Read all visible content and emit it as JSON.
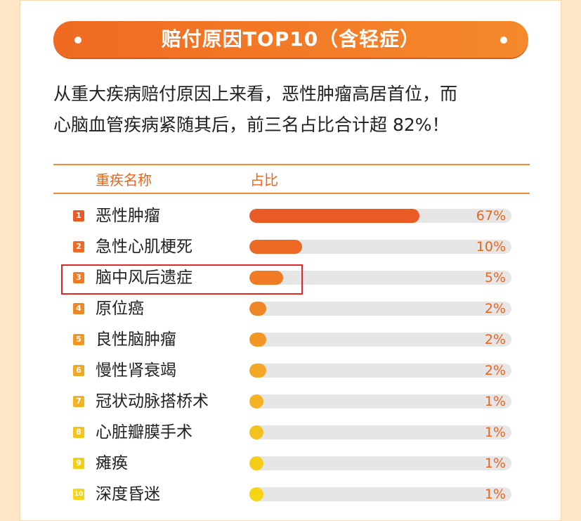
{
  "header": {
    "title": "赔付原因TOP10（含轻症）"
  },
  "description": {
    "line1": "从重大疾病赔付原因上来看，恶性肿瘤高居首位，而",
    "line2": "心脑血管疾病紧随其后，前三名占比合计超 82%！"
  },
  "table": {
    "col_name": "重疾名称",
    "col_ratio": "占比"
  },
  "chart_data": {
    "type": "bar",
    "orientation": "horizontal",
    "categories": [
      "恶性肿瘤",
      "急性心肌梗死",
      "脑中风后遗症",
      "原位癌",
      "良性脑肿瘤",
      "慢性肾衰竭",
      "冠状动脉搭桥术",
      "心脏瓣膜手术",
      "瘫痪",
      "深度昏迷"
    ],
    "values": [
      67,
      10,
      5,
      2,
      2,
      2,
      1,
      1,
      1,
      1
    ],
    "value_labels": [
      "67%",
      "10%",
      "5%",
      "2%",
      "2%",
      "2%",
      "1%",
      "1%",
      "1%",
      "1%"
    ],
    "ranks": [
      "1",
      "2",
      "3",
      "4",
      "5",
      "6",
      "7",
      "8",
      "9",
      "10"
    ],
    "xlim": [
      0,
      100
    ],
    "colors": [
      "#ea5a25",
      "#ec6a26",
      "#ef7b26",
      "#f08726",
      "#f29726",
      "#f3a727",
      "#f4b323",
      "#f4c21e",
      "#f4cc1a",
      "#f5d514"
    ],
    "highlighted_category": "脑中风后遗症"
  }
}
